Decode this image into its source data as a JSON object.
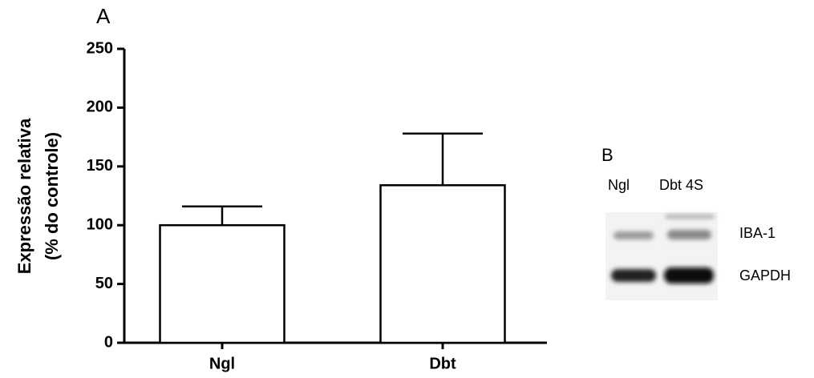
{
  "chart_data": {
    "type": "bar",
    "panel_label": "A",
    "y_label": [
      "Expressão relativa",
      "(% do controle)"
    ],
    "categories": [
      "Ngl",
      "Dbt"
    ],
    "values": [
      100,
      134
    ],
    "errors": [
      16,
      44
    ],
    "color": "#ffffff",
    "ylim": [
      0,
      250
    ],
    "yticks": [
      0,
      50,
      100,
      150,
      200,
      250
    ],
    "grid": false
  },
  "blot": {
    "panel_label": "B",
    "lanes": [
      "Ngl",
      "Dbt 4S"
    ],
    "bands": [
      "IBA-1",
      "GAPDH"
    ]
  }
}
